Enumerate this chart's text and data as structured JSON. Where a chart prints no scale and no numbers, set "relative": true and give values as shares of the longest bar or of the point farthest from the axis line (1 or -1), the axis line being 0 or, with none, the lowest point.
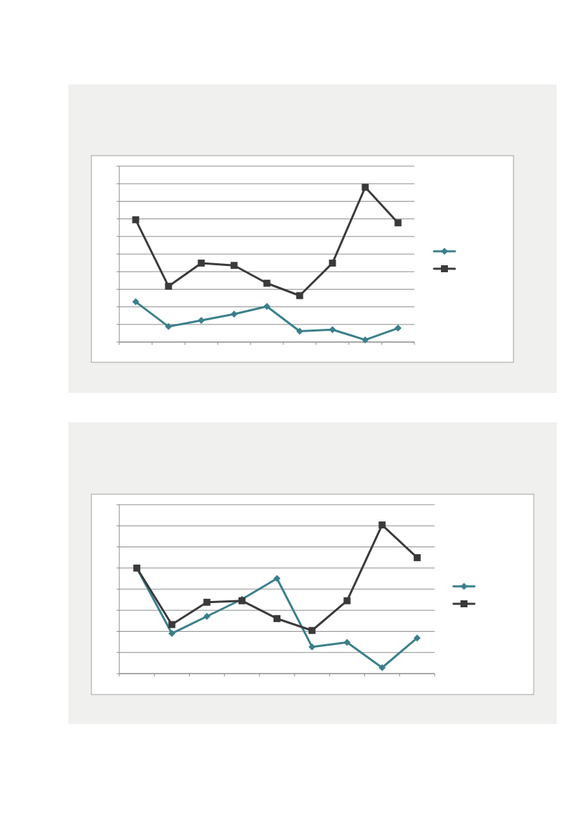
{
  "chart_data": [
    {
      "type": "line",
      "relative": true,
      "categories": [
        null,
        null,
        null,
        null,
        null,
        null,
        null,
        null,
        null
      ],
      "grid": "y",
      "series": [
        {
          "color": "#3a7f8b",
          "marker": "diamond",
          "values": [
            0.26,
            0.1,
            0.14,
            0.18,
            0.23,
            0.07,
            0.08,
            0.014,
            0.09
          ]
        },
        {
          "color": "#3a3a3a",
          "marker": "square",
          "values": [
            0.79,
            0.36,
            0.51,
            0.495,
            0.38,
            0.3,
            0.51,
            1,
            0.77
          ]
        }
      ]
    },
    {
      "type": "line",
      "relative": true,
      "categories": [
        null,
        null,
        null,
        null,
        null,
        null,
        null,
        null,
        null
      ],
      "grid": "y",
      "series": [
        {
          "color": "#3a7f8b",
          "marker": "diamond",
          "values": [
            0.71,
            0.27,
            0.385,
            0.5,
            0.64,
            0.18,
            0.21,
            0.04,
            0.24
          ]
        },
        {
          "color": "#3a3a3a",
          "marker": "square",
          "values": [
            0.71,
            0.33,
            0.48,
            0.49,
            0.37,
            0.29,
            0.49,
            1,
            0.78
          ]
        }
      ]
    }
  ]
}
